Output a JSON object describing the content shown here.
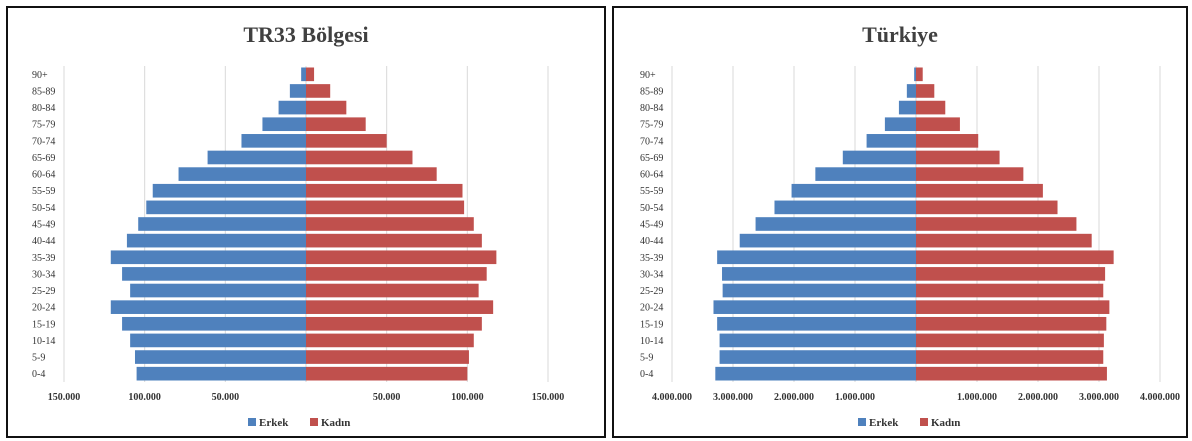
{
  "chart_data": [
    {
      "type": "bar",
      "orientation": "horizontal",
      "title": "TR33 Bölgesi",
      "categories": [
        "0-4",
        "5-9",
        "10-14",
        "15-19",
        "20-24",
        "25-29",
        "30-34",
        "35-39",
        "40-44",
        "45-49",
        "50-54",
        "55-59",
        "60-64",
        "65-69",
        "70-74",
        "75-79",
        "80-84",
        "85-89",
        "90+"
      ],
      "series": [
        {
          "name": "Erkek",
          "color": "#4f81bd",
          "values": [
            105000,
            106000,
            109000,
            114000,
            121000,
            109000,
            114000,
            121000,
            111000,
            104000,
            99000,
            95000,
            79000,
            61000,
            40000,
            27000,
            17000,
            10000,
            3000
          ]
        },
        {
          "name": "Kadın",
          "color": "#c0504d",
          "values": [
            100000,
            101000,
            104000,
            109000,
            116000,
            107000,
            112000,
            118000,
            109000,
            104000,
            98000,
            97000,
            81000,
            66000,
            50000,
            37000,
            25000,
            15000,
            5000
          ]
        }
      ],
      "xlim": [
        -150000,
        150000
      ],
      "xticks": [
        -150000,
        -100000,
        -50000,
        0,
        50000,
        100000,
        150000
      ],
      "xtick_labels": [
        "150.000",
        "100.000",
        "50.000",
        "",
        "50.000",
        "100.000",
        "150.000"
      ],
      "legend": "bottom"
    },
    {
      "type": "bar",
      "orientation": "horizontal",
      "title": "Türkiye",
      "categories": [
        "0-4",
        "5-9",
        "10-14",
        "15-19",
        "20-24",
        "25-29",
        "30-34",
        "35-39",
        "40-44",
        "45-49",
        "50-54",
        "55-59",
        "60-64",
        "65-69",
        "70-74",
        "75-79",
        "80-84",
        "85-89",
        "90+"
      ],
      "series": [
        {
          "name": "Erkek",
          "color": "#4f81bd",
          "values": [
            3290000,
            3220000,
            3220000,
            3260000,
            3320000,
            3170000,
            3180000,
            3260000,
            2890000,
            2630000,
            2320000,
            2040000,
            1650000,
            1200000,
            810000,
            510000,
            280000,
            150000,
            30000
          ]
        },
        {
          "name": "Kadın",
          "color": "#c0504d",
          "values": [
            3130000,
            3070000,
            3080000,
            3120000,
            3170000,
            3070000,
            3100000,
            3240000,
            2880000,
            2630000,
            2320000,
            2080000,
            1760000,
            1370000,
            1020000,
            720000,
            480000,
            300000,
            110000
          ]
        }
      ],
      "xlim": [
        -4000000,
        4000000
      ],
      "xticks": [
        -4000000,
        -3000000,
        -2000000,
        -1000000,
        0,
        1000000,
        2000000,
        3000000,
        4000000
      ],
      "xtick_labels": [
        "4.000.000",
        "3.000.000",
        "2.000.000",
        "1.000.000",
        "",
        "1.000.000",
        "2.000.000",
        "3.000.000",
        "4.000.000"
      ],
      "legend": "bottom"
    }
  ]
}
